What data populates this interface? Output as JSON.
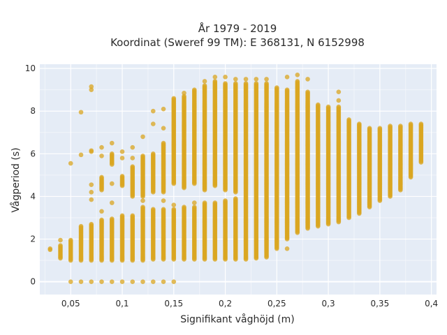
{
  "chart_data": {
    "type": "scatter",
    "title_line1": "År 1979 - 2019",
    "title_line2": "Koordinat (Sweref 99 TM): E 368131, N 6152998",
    "xlabel": "Signifikant våghöjd (m)",
    "ylabel": "Vågperiod (s)",
    "xlim": [
      0.02,
      0.405
    ],
    "ylim": [
      -0.6,
      10.2
    ],
    "x_ticks": [
      0.05,
      0.1,
      0.15,
      0.2,
      0.25,
      0.3,
      0.35,
      0.4
    ],
    "x_tick_labels": [
      "0,05",
      "0,1",
      "0,15",
      "0,2",
      "0,25",
      "0,3",
      "0,35",
      "0,4"
    ],
    "y_ticks": [
      0,
      2,
      4,
      6,
      8,
      10
    ],
    "y_tick_labels": [
      "0",
      "2",
      "4",
      "6",
      "8",
      "10"
    ],
    "grid": true,
    "plot_background": "#E5ECF6",
    "marker_color": "#DAA520",
    "marker_opacity": 0.75,
    "columns": [
      {
        "x": 0.03,
        "ranges": [
          [
            1.5,
            1.55
          ]
        ]
      },
      {
        "x": 0.04,
        "ranges": [
          [
            1.1,
            1.7
          ]
        ],
        "points": [
          1.95
        ]
      },
      {
        "x": 0.05,
        "ranges": [
          [
            1.0,
            1.95
          ]
        ],
        "points": [
          0,
          5.55
        ]
      },
      {
        "x": 0.06,
        "ranges": [
          [
            1.0,
            2.6
          ]
        ],
        "points": [
          0,
          5.95,
          7.95
        ]
      },
      {
        "x": 0.07,
        "ranges": [
          [
            1.0,
            2.7
          ]
        ],
        "points": [
          0,
          3.85,
          4.2,
          4.55,
          6.1,
          6.15,
          9.0,
          9.15
        ]
      },
      {
        "x": 0.08,
        "ranges": [
          [
            1.0,
            2.9
          ],
          [
            4.3,
            4.9
          ]
        ],
        "points": [
          0,
          3.3,
          5.9,
          6.3
        ]
      },
      {
        "x": 0.09,
        "ranges": [
          [
            1.0,
            2.95
          ],
          [
            5.5,
            6.0
          ]
        ],
        "points": [
          0,
          3.7,
          4.6,
          6.5
        ]
      },
      {
        "x": 0.1,
        "ranges": [
          [
            1.0,
            3.1
          ],
          [
            4.5,
            4.95
          ]
        ],
        "points": [
          0,
          5.8,
          6.1
        ]
      },
      {
        "x": 0.11,
        "ranges": [
          [
            1.0,
            3.1
          ],
          [
            4.0,
            5.4
          ]
        ],
        "points": [
          0,
          5.8,
          6.3
        ]
      },
      {
        "x": 0.12,
        "ranges": [
          [
            1.0,
            3.5
          ],
          [
            4.0,
            5.9
          ]
        ],
        "points": [
          0,
          3.8,
          6.8
        ]
      },
      {
        "x": 0.13,
        "ranges": [
          [
            1.05,
            3.4
          ],
          [
            4.2,
            6.0
          ]
        ],
        "points": [
          0,
          7.4,
          8.0
        ]
      },
      {
        "x": 0.14,
        "ranges": [
          [
            1.05,
            3.4
          ],
          [
            4.2,
            6.5
          ]
        ],
        "points": [
          0,
          3.8,
          7.2,
          8.1
        ]
      },
      {
        "x": 0.15,
        "ranges": [
          [
            1.05,
            3.4
          ],
          [
            4.6,
            8.6
          ]
        ],
        "points": [
          0,
          3.6
        ]
      },
      {
        "x": 0.16,
        "ranges": [
          [
            1.05,
            3.5
          ],
          [
            4.4,
            8.7
          ]
        ],
        "points": [
          8.85
        ]
      },
      {
        "x": 0.17,
        "ranges": [
          [
            1.05,
            3.5
          ],
          [
            4.6,
            9.0
          ]
        ],
        "points": [
          3.7
        ]
      },
      {
        "x": 0.18,
        "ranges": [
          [
            1.05,
            3.7
          ],
          [
            4.3,
            9.2
          ]
        ],
        "points": [
          9.4
        ]
      },
      {
        "x": 0.19,
        "ranges": [
          [
            1.05,
            3.7
          ],
          [
            4.5,
            9.4
          ]
        ],
        "points": [
          9.6
        ]
      },
      {
        "x": 0.2,
        "ranges": [
          [
            1.05,
            3.8
          ],
          [
            4.3,
            9.3
          ]
        ],
        "points": [
          9.6
        ]
      },
      {
        "x": 0.21,
        "ranges": [
          [
            1.05,
            3.9
          ],
          [
            4.2,
            9.3
          ]
        ],
        "points": [
          9.5
        ]
      },
      {
        "x": 0.22,
        "ranges": [
          [
            1.05,
            9.3
          ]
        ],
        "points": [
          9.5
        ]
      },
      {
        "x": 0.23,
        "ranges": [
          [
            1.1,
            9.3
          ]
        ],
        "points": [
          9.5
        ]
      },
      {
        "x": 0.24,
        "ranges": [
          [
            1.15,
            9.3
          ]
        ],
        "points": [
          9.5
        ]
      },
      {
        "x": 0.25,
        "ranges": [
          [
            1.55,
            9.1
          ]
        ]
      },
      {
        "x": 0.26,
        "ranges": [
          [
            2.0,
            9.0
          ]
        ],
        "points": [
          9.6,
          1.55
        ]
      },
      {
        "x": 0.27,
        "ranges": [
          [
            2.3,
            9.4
          ]
        ],
        "points": [
          9.7
        ]
      },
      {
        "x": 0.28,
        "ranges": [
          [
            2.5,
            8.9
          ]
        ],
        "points": [
          9.5
        ]
      },
      {
        "x": 0.29,
        "ranges": [
          [
            2.6,
            8.3
          ]
        ]
      },
      {
        "x": 0.3,
        "ranges": [
          [
            2.7,
            8.2
          ]
        ]
      },
      {
        "x": 0.31,
        "ranges": [
          [
            2.8,
            8.2
          ]
        ],
        "points": [
          8.5,
          8.9
        ]
      },
      {
        "x": 0.32,
        "ranges": [
          [
            3.0,
            7.6
          ]
        ]
      },
      {
        "x": 0.33,
        "ranges": [
          [
            3.2,
            7.4
          ]
        ]
      },
      {
        "x": 0.34,
        "ranges": [
          [
            3.5,
            7.2
          ]
        ]
      },
      {
        "x": 0.35,
        "ranges": [
          [
            3.8,
            7.2
          ]
        ]
      },
      {
        "x": 0.36,
        "ranges": [
          [
            4.0,
            7.3
          ]
        ]
      },
      {
        "x": 0.37,
        "ranges": [
          [
            4.3,
            7.3
          ]
        ]
      },
      {
        "x": 0.38,
        "ranges": [
          [
            4.9,
            7.4
          ]
        ]
      },
      {
        "x": 0.39,
        "ranges": [
          [
            5.6,
            7.4
          ]
        ]
      }
    ]
  }
}
